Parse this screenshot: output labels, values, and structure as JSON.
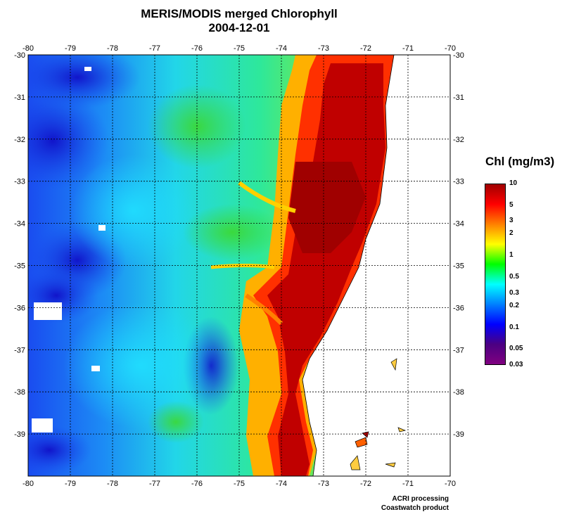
{
  "title": {
    "line1": "MERIS/MODIS merged Chlorophyll",
    "line2": "2004-12-01"
  },
  "map": {
    "lon_ticks": [
      "-80",
      "-79",
      "-78",
      "-77",
      "-76",
      "-75",
      "-74",
      "-73",
      "-72",
      "-71",
      "-70"
    ],
    "lat_ticks": [
      "-30",
      "-31",
      "-32",
      "-33",
      "-34",
      "-35",
      "-36",
      "-37",
      "-38",
      "-39"
    ],
    "lon_range": [
      -80,
      -70
    ],
    "lat_range": [
      -30,
      -40
    ],
    "grid": "dotted",
    "land_color": "#ffffff"
  },
  "colorbar": {
    "title": "Chl (mg/m3)",
    "labels": [
      "10",
      "5",
      "3",
      "2",
      "1",
      "0.5",
      "0.3",
      "0.2",
      "0.1",
      "0.05",
      "0.03"
    ],
    "colors": [
      "#a00000",
      "#ff0000",
      "#ff8000",
      "#ffff00",
      "#00ff00",
      "#00ffff",
      "#0080ff",
      "#0000ff",
      "#4b0082",
      "#800080"
    ]
  },
  "credit": {
    "line1": "ACRI processing",
    "line2": "Coastwatch product"
  }
}
